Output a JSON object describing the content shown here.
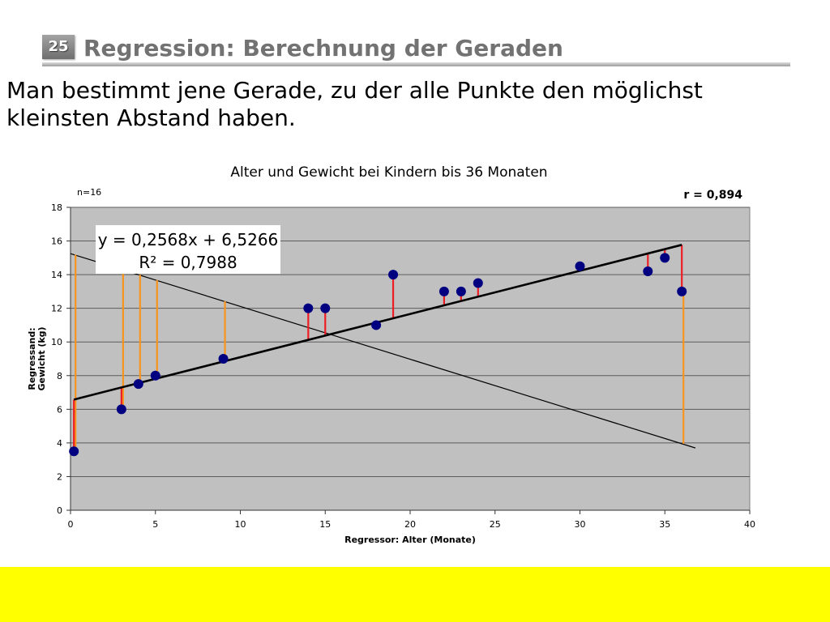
{
  "slide": {
    "number": "25",
    "title": "Regression: Berechnung der Geraden",
    "body": "Man bestimmt jene Gerade, zu der alle Punkte den möglichst kleinsten Abstand haben."
  },
  "colors": {
    "title_text": "#727272",
    "footer": "#ffff00",
    "plot_background": "#c0c0c0",
    "gridlines": "#5c5c5c",
    "axis": "#333333",
    "points": "#000080",
    "trendline": "#000000",
    "comparison_line": "#000000",
    "residual_trendline": "#ee1d24",
    "residual_comparison": "#f7941d"
  },
  "chart_data": {
    "type": "scatter",
    "title": "Alter und Gewicht bei Kindern bis 36 Monaten",
    "sample_size_label": "n=16",
    "correlation_label": "r = 0,894",
    "xlabel": "Regressor: Alter (Monate)",
    "ylabel": [
      "Regressand:",
      "Gewicht (kg)"
    ],
    "xlim": [
      0,
      40
    ],
    "ylim": [
      0,
      18
    ],
    "xticks": [
      0,
      5,
      10,
      15,
      20,
      25,
      30,
      35,
      40
    ],
    "yticks": [
      0,
      2,
      4,
      6,
      8,
      10,
      12,
      14,
      16,
      18
    ],
    "grid": {
      "horizontal": true,
      "vertical": false
    },
    "points": {
      "x": [
        0.2,
        3,
        4,
        5,
        9,
        14,
        15,
        18,
        19,
        22,
        23,
        24,
        30,
        34,
        35,
        36
      ],
      "y": [
        3.5,
        6,
        7.5,
        8,
        9,
        12,
        12,
        11,
        14,
        13,
        13,
        13.5,
        14.5,
        14.2,
        15,
        13
      ]
    },
    "trendline": {
      "slope": 0.2568,
      "intercept": 6.5266,
      "x_range": [
        0.2,
        36
      ],
      "equation_label": "y = 0,2568x + 6,5266",
      "r_squared_label": "R² = 0,7988"
    },
    "comparison_line": {
      "x": [
        0,
        36.8
      ],
      "y": [
        15.25,
        3.7
      ]
    },
    "residuals": {
      "to_trendline_x": [
        0.2,
        3,
        4,
        5,
        9,
        14,
        15,
        18,
        19,
        22,
        23,
        24,
        30,
        34,
        35,
        36
      ],
      "to_comparison_line_x": [
        0.2,
        3,
        4,
        5,
        9,
        36
      ]
    }
  }
}
